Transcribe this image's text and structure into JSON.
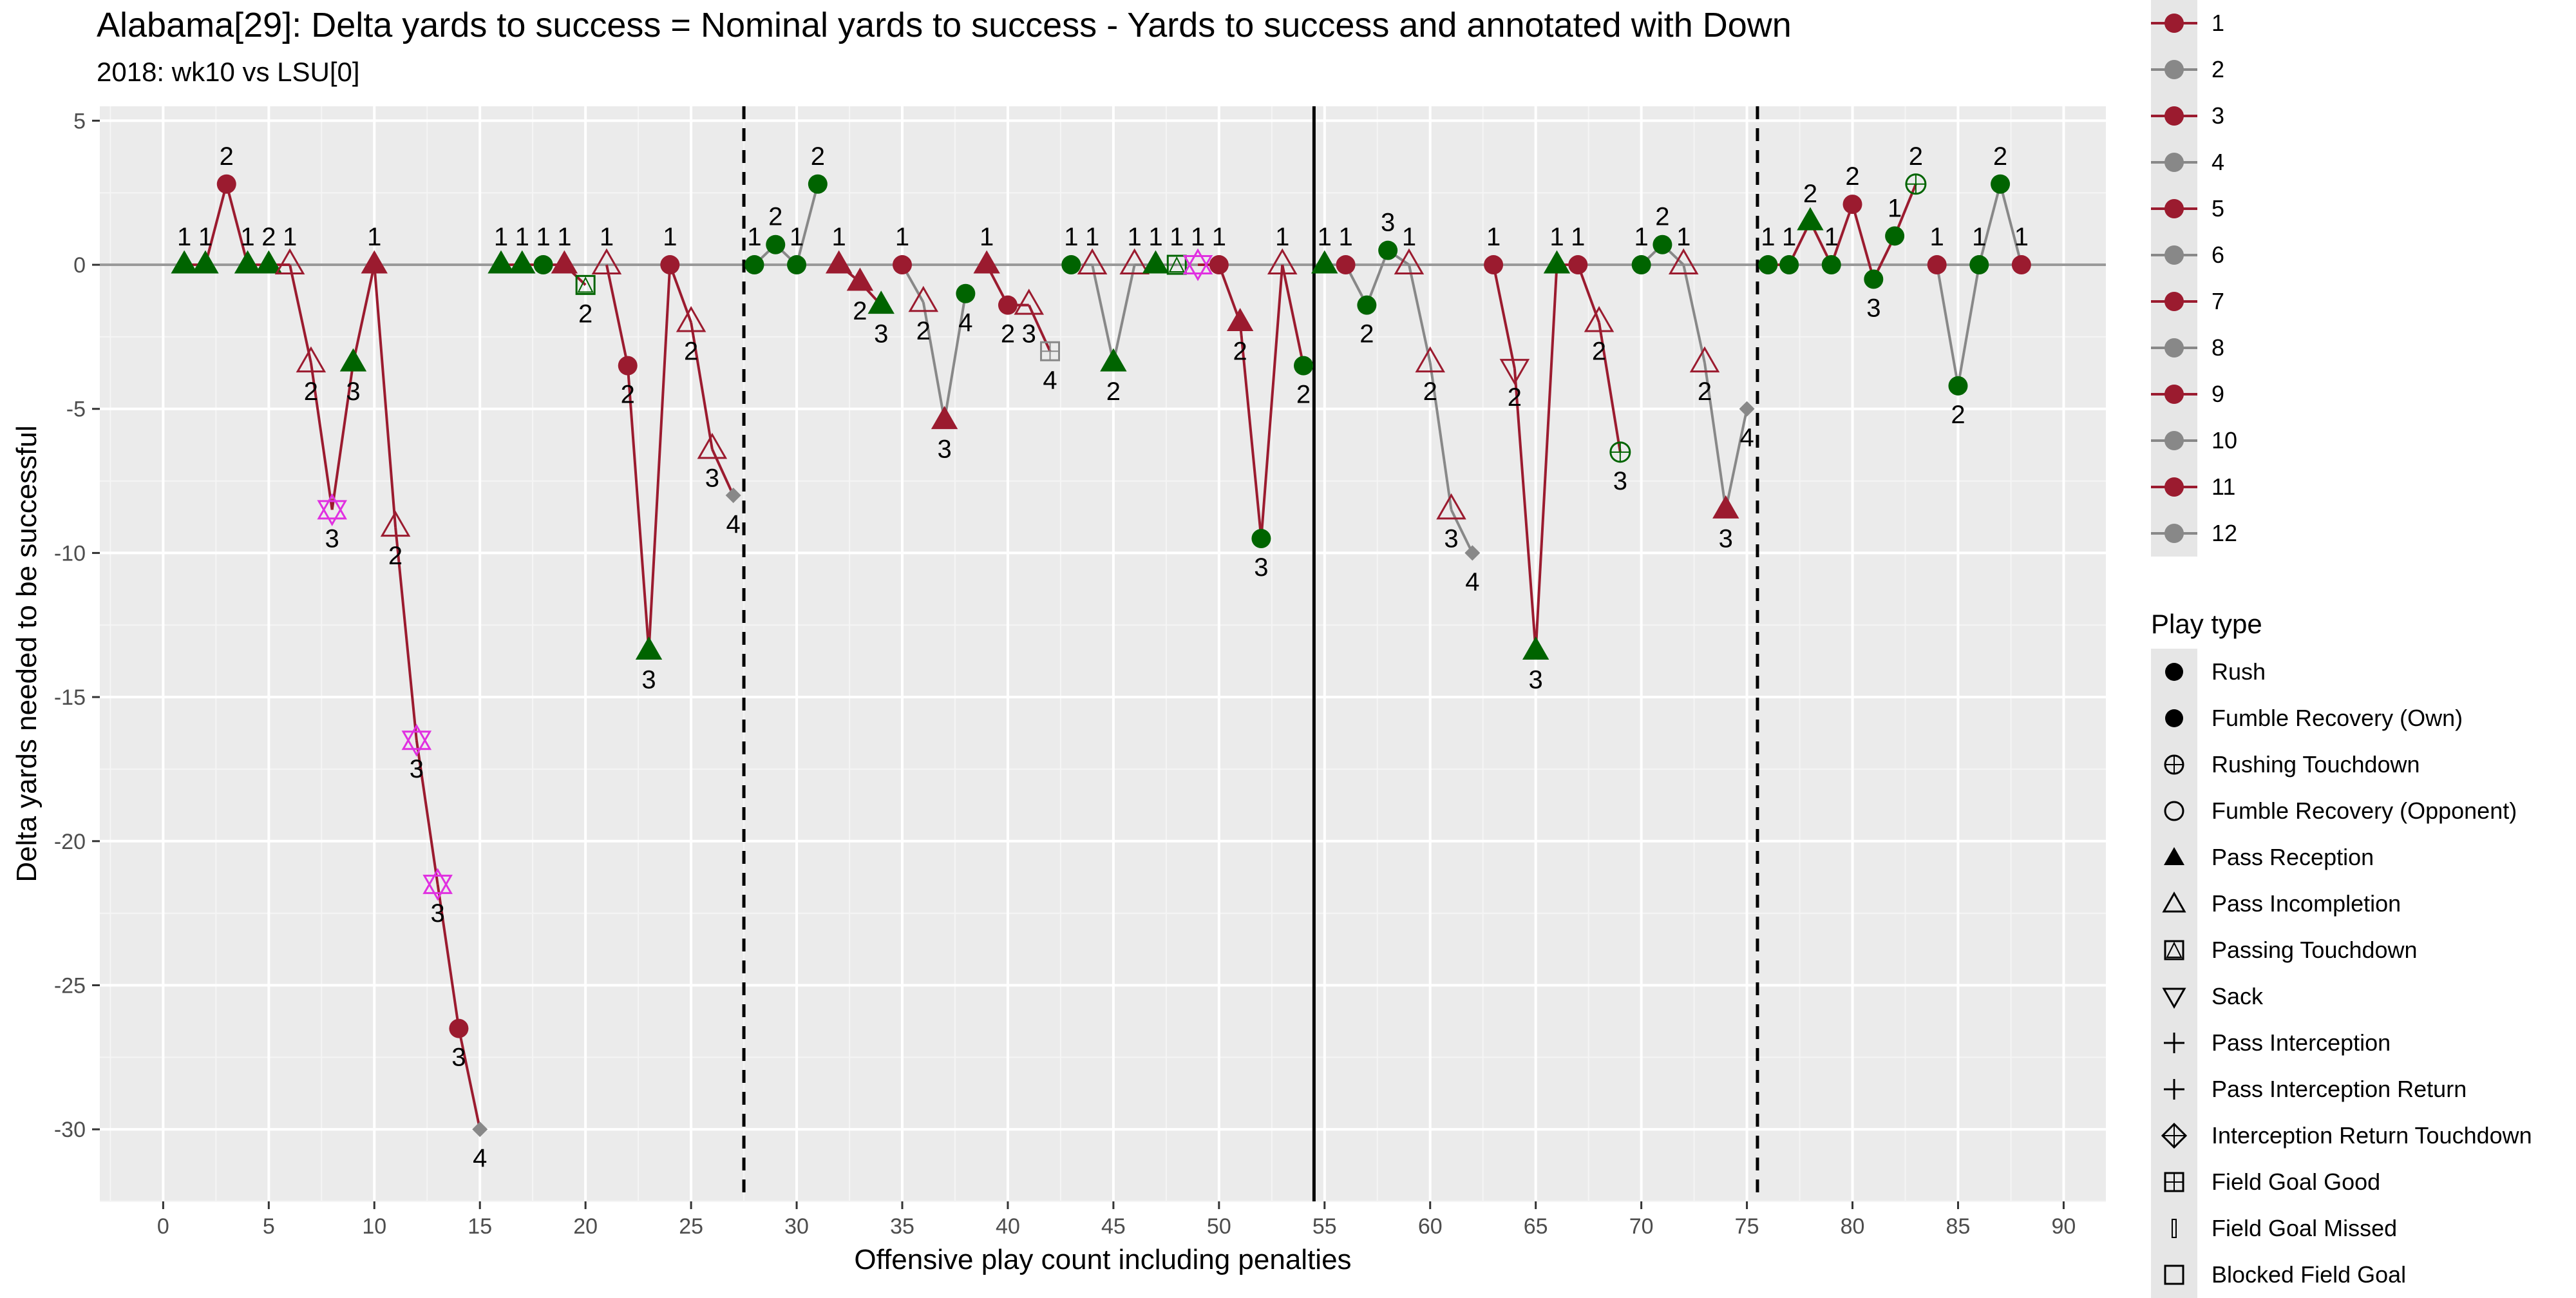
{
  "chart_data": {
    "type": "line",
    "title": "Alabama[29]: Delta yards to success = Nominal yards to success - Yards to success and annotated with Down",
    "subtitle": "2018: wk10 vs LSU[0]",
    "xlabel": "Offensive play count including penalties",
    "ylabel": "Delta yards needed to be successful",
    "xlim": [
      -3,
      92
    ],
    "ylim": [
      -32.5,
      5.5
    ],
    "x_ticks": [
      "0",
      "5",
      "10",
      "15",
      "20",
      "25",
      "30",
      "35",
      "40",
      "45",
      "50",
      "55",
      "60",
      "65",
      "70",
      "75",
      "80",
      "85",
      "90"
    ],
    "x_tick_values": [
      0,
      5,
      10,
      15,
      20,
      25,
      30,
      35,
      40,
      45,
      50,
      55,
      60,
      65,
      70,
      75,
      80,
      85,
      90
    ],
    "y_ticks": [
      "5",
      "0",
      "-5",
      "-10",
      "-15",
      "-20",
      "-25",
      "-30"
    ],
    "y_tick_values": [
      5,
      0,
      -5,
      -10,
      -15,
      -20,
      -25,
      -30
    ],
    "quarter_breaks": [
      27.5,
      75.5
    ],
    "half_break": 54.5,
    "colors": {
      "alabama": "#9b1b2f",
      "gray": "#888888",
      "success": "#006400",
      "sack": "#e030e0"
    },
    "points": [
      {
        "x": 1,
        "y": 0,
        "down": "1",
        "shape": "triangle",
        "fill": "success",
        "drive": 1
      },
      {
        "x": 2,
        "y": 0,
        "down": "1",
        "shape": "triangle",
        "fill": "success",
        "drive": 1
      },
      {
        "x": 3,
        "y": 2.8,
        "down": "2",
        "shape": "circle",
        "fill": "alabama",
        "drive": 1
      },
      {
        "x": 4,
        "y": 0,
        "down": "1",
        "shape": "triangle",
        "fill": "success",
        "drive": 1
      },
      {
        "x": 5,
        "y": 0,
        "down": "2",
        "shape": "triangle",
        "fill": "success",
        "drive": 1
      },
      {
        "x": 6,
        "y": 0,
        "down": "1",
        "shape": "triangle-open",
        "fill": "alabama",
        "drive": 1
      },
      {
        "x": 7,
        "y": -3.4,
        "down": "2",
        "shape": "triangle-open",
        "fill": "alabama",
        "drive": 1
      },
      {
        "x": 8,
        "y": -8.5,
        "down": "3",
        "shape": "sack",
        "fill": "sack",
        "drive": 1
      },
      {
        "x": 9,
        "y": -3.4,
        "down": "3",
        "shape": "triangle",
        "fill": "success",
        "drive": 1
      },
      {
        "x": 10,
        "y": 0,
        "down": "1",
        "shape": "triangle",
        "fill": "alabama",
        "drive": 1
      },
      {
        "x": 11,
        "y": -9.1,
        "down": "2",
        "shape": "triangle-open",
        "fill": "alabama",
        "drive": 1
      },
      {
        "x": 12,
        "y": -16.5,
        "down": "3",
        "shape": "sack",
        "fill": "sack",
        "drive": 1
      },
      {
        "x": 13,
        "y": -21.5,
        "down": "3",
        "shape": "sack",
        "fill": "sack",
        "drive": 1
      },
      {
        "x": 14,
        "y": -26.5,
        "down": "3",
        "shape": "circle",
        "fill": "alabama",
        "drive": 1
      },
      {
        "x": 15,
        "y": -30,
        "down": "4",
        "shape": "diamond",
        "fill": "gray",
        "drive": 1
      },
      {
        "x": 16,
        "y": 0,
        "down": "1",
        "shape": "triangle",
        "fill": "success",
        "drive": 3
      },
      {
        "x": 17,
        "y": 0,
        "down": "1",
        "shape": "triangle",
        "fill": "success",
        "drive": 3
      },
      {
        "x": 18,
        "y": 0,
        "down": "1",
        "shape": "circle",
        "fill": "success",
        "drive": 3
      },
      {
        "x": 19,
        "y": 0,
        "down": "1",
        "shape": "triangle",
        "fill": "alabama",
        "drive": 3
      },
      {
        "x": 20,
        "y": -0.7,
        "down": "2",
        "shape": "td-box",
        "fill": "success",
        "drive": 3
      },
      {
        "x": 21,
        "y": 0,
        "down": "1",
        "shape": "triangle-open",
        "fill": "alabama",
        "drive": 5
      },
      {
        "x": 22,
        "y": -3.5,
        "down": "2",
        "shape": "circle",
        "fill": "alabama",
        "drive": 5
      },
      {
        "x": 23,
        "y": -13.4,
        "down": "3",
        "shape": "triangle",
        "fill": "success",
        "drive": 5
      },
      {
        "x": 24,
        "y": 0,
        "down": "1",
        "shape": "circle",
        "fill": "alabama",
        "drive": 5
      },
      {
        "x": 25,
        "y": -2,
        "down": "2",
        "shape": "triangle-open",
        "fill": "alabama",
        "drive": 5
      },
      {
        "x": 26,
        "y": -6.4,
        "down": "3",
        "shape": "triangle-open",
        "fill": "alabama",
        "drive": 5
      },
      {
        "x": 27,
        "y": -8,
        "down": "4",
        "shape": "diamond",
        "fill": "gray",
        "drive": 5
      },
      {
        "x": 28,
        "y": 0,
        "down": "1",
        "shape": "circle",
        "fill": "success",
        "drive": 6
      },
      {
        "x": 29,
        "y": 0.7,
        "down": "2",
        "shape": "circle",
        "fill": "success",
        "drive": 6
      },
      {
        "x": 30,
        "y": 0,
        "down": "1",
        "shape": "circle",
        "fill": "success",
        "drive": 6
      },
      {
        "x": 31,
        "y": 2.8,
        "down": "2",
        "shape": "circle",
        "fill": "success",
        "drive": 6
      },
      {
        "x": 32,
        "y": 0,
        "down": "1",
        "shape": "triangle",
        "fill": "alabama",
        "drive": 7
      },
      {
        "x": 33,
        "y": -0.6,
        "down": "2",
        "shape": "triangle",
        "fill": "alabama",
        "drive": 7
      },
      {
        "x": 34,
        "y": -1.4,
        "down": "3",
        "shape": "triangle",
        "fill": "success",
        "drive": 7
      },
      {
        "x": 35,
        "y": 0,
        "down": "1",
        "shape": "circle",
        "fill": "alabama",
        "drive": 8
      },
      {
        "x": 36,
        "y": -1.3,
        "down": "2",
        "shape": "triangle-open",
        "fill": "alabama",
        "drive": 8
      },
      {
        "x": 37,
        "y": -5.4,
        "down": "3",
        "shape": "triangle",
        "fill": "alabama",
        "drive": 8
      },
      {
        "x": 38,
        "y": -1,
        "down": "4",
        "shape": "circle",
        "fill": "success",
        "drive": 8
      },
      {
        "x": 39,
        "y": 0,
        "down": "1",
        "shape": "triangle",
        "fill": "alabama",
        "drive": 9
      },
      {
        "x": 40,
        "y": -1.4,
        "down": "2",
        "shape": "circle",
        "fill": "alabama",
        "drive": 9
      },
      {
        "x": 41,
        "y": -1.4,
        "down": "3",
        "shape": "triangle-open",
        "fill": "alabama",
        "drive": 9
      },
      {
        "x": 42,
        "y": -3,
        "down": "4",
        "shape": "fg-box",
        "fill": "gray",
        "drive": 9
      },
      {
        "x": 43,
        "y": 0,
        "down": "1",
        "shape": "circle",
        "fill": "success",
        "drive": 10
      },
      {
        "x": 44,
        "y": 0,
        "down": "1",
        "shape": "triangle-open",
        "fill": "alabama",
        "drive": 10
      },
      {
        "x": 45,
        "y": -3.4,
        "down": "2",
        "shape": "triangle",
        "fill": "success",
        "drive": 10
      },
      {
        "x": 46,
        "y": 0,
        "down": "1",
        "shape": "triangle-open",
        "fill": "alabama",
        "drive": 10
      },
      {
        "x": 47,
        "y": 0,
        "down": "1",
        "shape": "triangle",
        "fill": "success",
        "drive": 10
      },
      {
        "x": 48,
        "y": 0,
        "down": "1",
        "shape": "td-box",
        "fill": "success",
        "drive": 10
      },
      {
        "x": 49,
        "y": 0,
        "down": "1",
        "shape": "sack",
        "fill": "sack",
        "drive": 11
      },
      {
        "x": 50,
        "y": 0,
        "down": "1",
        "shape": "circle",
        "fill": "alabama",
        "drive": 11
      },
      {
        "x": 51,
        "y": -2,
        "down": "2",
        "shape": "triangle",
        "fill": "alabama",
        "drive": 11
      },
      {
        "x": 52,
        "y": -9.5,
        "down": "3",
        "shape": "circle",
        "fill": "success",
        "drive": 11
      },
      {
        "x": 53,
        "y": 0,
        "down": "1",
        "shape": "triangle-open",
        "fill": "alabama",
        "drive": 11
      },
      {
        "x": 54,
        "y": -3.5,
        "down": "2",
        "shape": "circle",
        "fill": "success",
        "drive": 11
      },
      {
        "x": 55,
        "y": 0,
        "down": "1",
        "shape": "triangle",
        "fill": "success",
        "drive": 12
      },
      {
        "x": 56,
        "y": 0,
        "down": "1",
        "shape": "circle",
        "fill": "alabama",
        "drive": 12
      },
      {
        "x": 57,
        "y": -1.4,
        "down": "2",
        "shape": "circle",
        "fill": "success",
        "drive": 12
      },
      {
        "x": 58,
        "y": 0.5,
        "down": "3",
        "shape": "circle",
        "fill": "success",
        "drive": 12
      },
      {
        "x": 59,
        "y": 0,
        "down": "1",
        "shape": "triangle-open",
        "fill": "alabama",
        "drive": 12
      },
      {
        "x": 60,
        "y": -3.4,
        "down": "2",
        "shape": "triangle-open",
        "fill": "alabama",
        "drive": 12
      },
      {
        "x": 61,
        "y": -8.5,
        "down": "3",
        "shape": "triangle-open",
        "fill": "alabama",
        "drive": 12
      },
      {
        "x": 62,
        "y": -10,
        "down": "4",
        "shape": "diamond",
        "fill": "gray",
        "drive": 12
      },
      {
        "x": 63,
        "y": 0,
        "down": "1",
        "shape": "circle",
        "fill": "alabama",
        "drive": 1
      },
      {
        "x": 64,
        "y": -3.6,
        "down": "2",
        "shape": "sack-open",
        "fill": "alabama",
        "drive": 1
      },
      {
        "x": 65,
        "y": -13.4,
        "down": "3",
        "shape": "triangle",
        "fill": "success",
        "drive": 1
      },
      {
        "x": 66,
        "y": 0,
        "down": "1",
        "shape": "triangle",
        "fill": "success",
        "drive": 1
      },
      {
        "x": 67,
        "y": 0,
        "down": "1",
        "shape": "circle",
        "fill": "alabama",
        "drive": 1
      },
      {
        "x": 68,
        "y": -2,
        "down": "2",
        "shape": "triangle-open",
        "fill": "alabama",
        "drive": 1
      },
      {
        "x": 69,
        "y": -6.5,
        "down": "3",
        "shape": "rush-td",
        "fill": "success",
        "drive": 1
      },
      {
        "x": 70,
        "y": 0,
        "down": "1",
        "shape": "circle",
        "fill": "success",
        "drive": 2
      },
      {
        "x": 71,
        "y": 0.7,
        "down": "2",
        "shape": "circle",
        "fill": "success",
        "drive": 2
      },
      {
        "x": 72,
        "y": 0,
        "down": "1",
        "shape": "triangle-open",
        "fill": "alabama",
        "drive": 2
      },
      {
        "x": 73,
        "y": -3.4,
        "down": "2",
        "shape": "triangle-open",
        "fill": "alabama",
        "drive": 2
      },
      {
        "x": 74,
        "y": -8.5,
        "down": "3",
        "shape": "triangle",
        "fill": "alabama",
        "drive": 2
      },
      {
        "x": 75,
        "y": -5,
        "down": "4",
        "shape": "diamond",
        "fill": "gray",
        "drive": 2
      },
      {
        "x": 76,
        "y": 0,
        "down": "1",
        "shape": "circle",
        "fill": "success",
        "drive": 3
      },
      {
        "x": 77,
        "y": 0,
        "down": "1",
        "shape": "circle",
        "fill": "success",
        "drive": 3
      },
      {
        "x": 78,
        "y": 1.5,
        "down": "2",
        "shape": "triangle",
        "fill": "success",
        "drive": 3
      },
      {
        "x": 79,
        "y": 0,
        "down": "1",
        "shape": "circle",
        "fill": "success",
        "drive": 3
      },
      {
        "x": 80,
        "y": 2.1,
        "down": "2",
        "shape": "circle",
        "fill": "alabama",
        "drive": 3
      },
      {
        "x": 81,
        "y": -0.5,
        "down": "3",
        "shape": "circle",
        "fill": "success",
        "drive": 3
      },
      {
        "x": 82,
        "y": 1,
        "down": "1",
        "shape": "circle",
        "fill": "success",
        "drive": 3
      },
      {
        "x": 83,
        "y": 2.8,
        "down": "2",
        "shape": "rush-td",
        "fill": "success",
        "drive": 3
      },
      {
        "x": 84,
        "y": 0,
        "down": "1",
        "shape": "circle",
        "fill": "alabama",
        "drive": 4
      },
      {
        "x": 85,
        "y": -4.2,
        "down": "2",
        "shape": "circle",
        "fill": "success",
        "drive": 4
      },
      {
        "x": 86,
        "y": 0,
        "down": "1",
        "shape": "circle",
        "fill": "success",
        "drive": 4
      },
      {
        "x": 87,
        "y": 2.8,
        "down": "2",
        "shape": "circle",
        "fill": "success",
        "drive": 4
      },
      {
        "x": 88,
        "y": 0,
        "down": "1",
        "shape": "circle",
        "fill": "alabama",
        "drive": 4
      }
    ],
    "segments_gray": [
      [
        62,
        63
      ],
      [
        75,
        76
      ],
      [
        1,
        1
      ]
    ],
    "legend_drive": {
      "title": "",
      "items": [
        {
          "label": "1",
          "color": "alabama"
        },
        {
          "label": "2",
          "color": "gray"
        },
        {
          "label": "3",
          "color": "alabama"
        },
        {
          "label": "4",
          "color": "gray"
        },
        {
          "label": "5",
          "color": "alabama"
        },
        {
          "label": "6",
          "color": "gray"
        },
        {
          "label": "7",
          "color": "alabama"
        },
        {
          "label": "8",
          "color": "gray"
        },
        {
          "label": "9",
          "color": "alabama"
        },
        {
          "label": "10",
          "color": "gray"
        },
        {
          "label": "11",
          "color": "alabama"
        },
        {
          "label": "12",
          "color": "gray"
        }
      ]
    },
    "legend_play": {
      "title": "Play type",
      "items": [
        {
          "label": "Rush",
          "icon": "circle-filled"
        },
        {
          "label": "Fumble Recovery (Own)",
          "icon": "circle-filled"
        },
        {
          "label": "Rushing Touchdown",
          "icon": "circle-plus"
        },
        {
          "label": "Fumble Recovery (Opponent)",
          "icon": "circle-open"
        },
        {
          "label": "Pass Reception",
          "icon": "triangle-filled"
        },
        {
          "label": "Pass Incompletion",
          "icon": "triangle-open"
        },
        {
          "label": "Passing Touchdown",
          "icon": "square-triangle"
        },
        {
          "label": "Sack",
          "icon": "triangle-down-open"
        },
        {
          "label": "Pass Interception",
          "icon": "plus"
        },
        {
          "label": "Pass Interception Return",
          "icon": "plus"
        },
        {
          "label": "Interception Return Touchdown",
          "icon": "diamond-plus"
        },
        {
          "label": "Field Goal Good",
          "icon": "square-plus"
        },
        {
          "label": "Field Goal Missed",
          "icon": "thin-rect"
        },
        {
          "label": "Blocked Field Goal",
          "icon": "square-open"
        }
      ]
    }
  }
}
